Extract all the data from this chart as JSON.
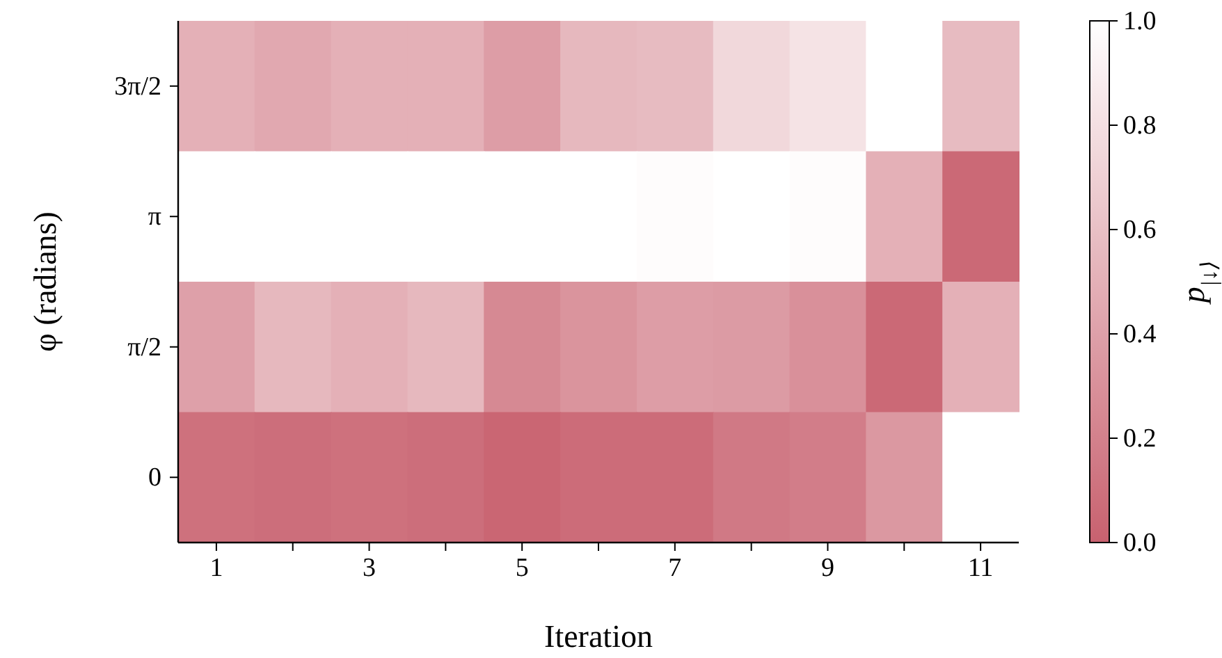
{
  "chart_data": {
    "type": "heatmap",
    "xlabel": "Iteration",
    "ylabel": "φ (radians)",
    "clabel": "p$_{|↓⟩}$",
    "categories": [
      "1",
      null,
      "3",
      null,
      "5",
      null,
      "7",
      null,
      "9",
      null,
      "11"
    ],
    "y_categories": [
      "3π/2",
      "π",
      "π/2",
      "0"
    ],
    "cells": [
      [
        0.5,
        0.45,
        0.5,
        0.5,
        0.38,
        0.55,
        0.57,
        0.75,
        0.82,
        1,
        0.57
      ],
      [
        1,
        1,
        1,
        1,
        1,
        1,
        0.98,
        1,
        0.98,
        0.5,
        0.05
      ],
      [
        0.4,
        0.55,
        0.5,
        0.55,
        0.25,
        0.32,
        0.38,
        0.37,
        0.3,
        0.05,
        0.5
      ],
      [
        0.1,
        0.08,
        0.1,
        0.08,
        0.03,
        0.07,
        0.07,
        0.15,
        0.18,
        0.35,
        1
      ]
    ],
    "clim": [
      0,
      1
    ],
    "cticks": [
      {
        "value": 0,
        "label": "0.0"
      },
      {
        "value": 0.2,
        "label": "0.2"
      },
      {
        "value": 0.4,
        "label": "0.4"
      },
      {
        "value": 0.6,
        "label": "0.6"
      },
      {
        "value": 0.8,
        "label": "0.8"
      },
      {
        "value": 1,
        "label": "1.0"
      }
    ]
  }
}
